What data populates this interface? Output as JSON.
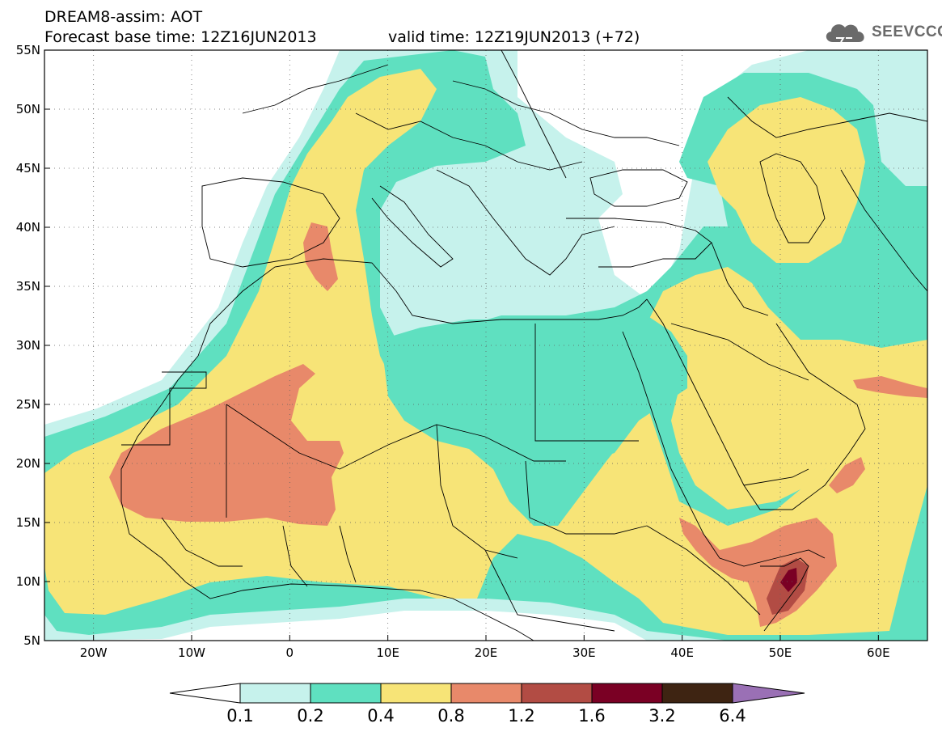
{
  "header": {
    "line1": "DREAM8-assim: AOT",
    "line2": "Forecast base time: 12Z16JUN2013",
    "valid": "valid time: 12Z19JUN2013 (+72)"
  },
  "logo": {
    "text": "SEEVCCC",
    "icon": "cloud-icon",
    "color": "#6a6a6a"
  },
  "map": {
    "lon_range": [
      -25,
      65
    ],
    "lat_range": [
      5,
      55
    ],
    "lon_ticks": [
      {
        "value": -20,
        "label": "20W"
      },
      {
        "value": -10,
        "label": "10W"
      },
      {
        "value": 0,
        "label": "0"
      },
      {
        "value": 10,
        "label": "10E"
      },
      {
        "value": 20,
        "label": "20E"
      },
      {
        "value": 30,
        "label": "30E"
      },
      {
        "value": 40,
        "label": "40E"
      },
      {
        "value": 50,
        "label": "50E"
      },
      {
        "value": 60,
        "label": "60E"
      }
    ],
    "lat_ticks": [
      {
        "value": 5,
        "label": "5N"
      },
      {
        "value": 10,
        "label": "10N"
      },
      {
        "value": 15,
        "label": "15N"
      },
      {
        "value": 20,
        "label": "20N"
      },
      {
        "value": 25,
        "label": "25N"
      },
      {
        "value": 30,
        "label": "30N"
      },
      {
        "value": 35,
        "label": "35N"
      },
      {
        "value": 40,
        "label": "40N"
      },
      {
        "value": 45,
        "label": "45N"
      },
      {
        "value": 50,
        "label": "50N"
      },
      {
        "value": 55,
        "label": "55N"
      }
    ],
    "fill_colors": {
      "c01": "#c6f2ec",
      "c02": "#5fe0c0",
      "c04": "#f7e477",
      "c08": "#e8896a",
      "c12": "#b24c44",
      "c16": "#7a0024",
      "c32": "#3e2412",
      "c64": "#9a70b5"
    },
    "border_color": "#000000",
    "grid": "dotted"
  },
  "colorbar": {
    "labels": [
      "0.1",
      "0.2",
      "0.4",
      "0.8",
      "1.2",
      "1.6",
      "3.2",
      "6.4"
    ],
    "colors": [
      "#ffffff",
      "#c6f2ec",
      "#5fe0c0",
      "#f7e477",
      "#e8896a",
      "#b24c44",
      "#7a0024",
      "#3e2412",
      "#9a70b5"
    ]
  }
}
